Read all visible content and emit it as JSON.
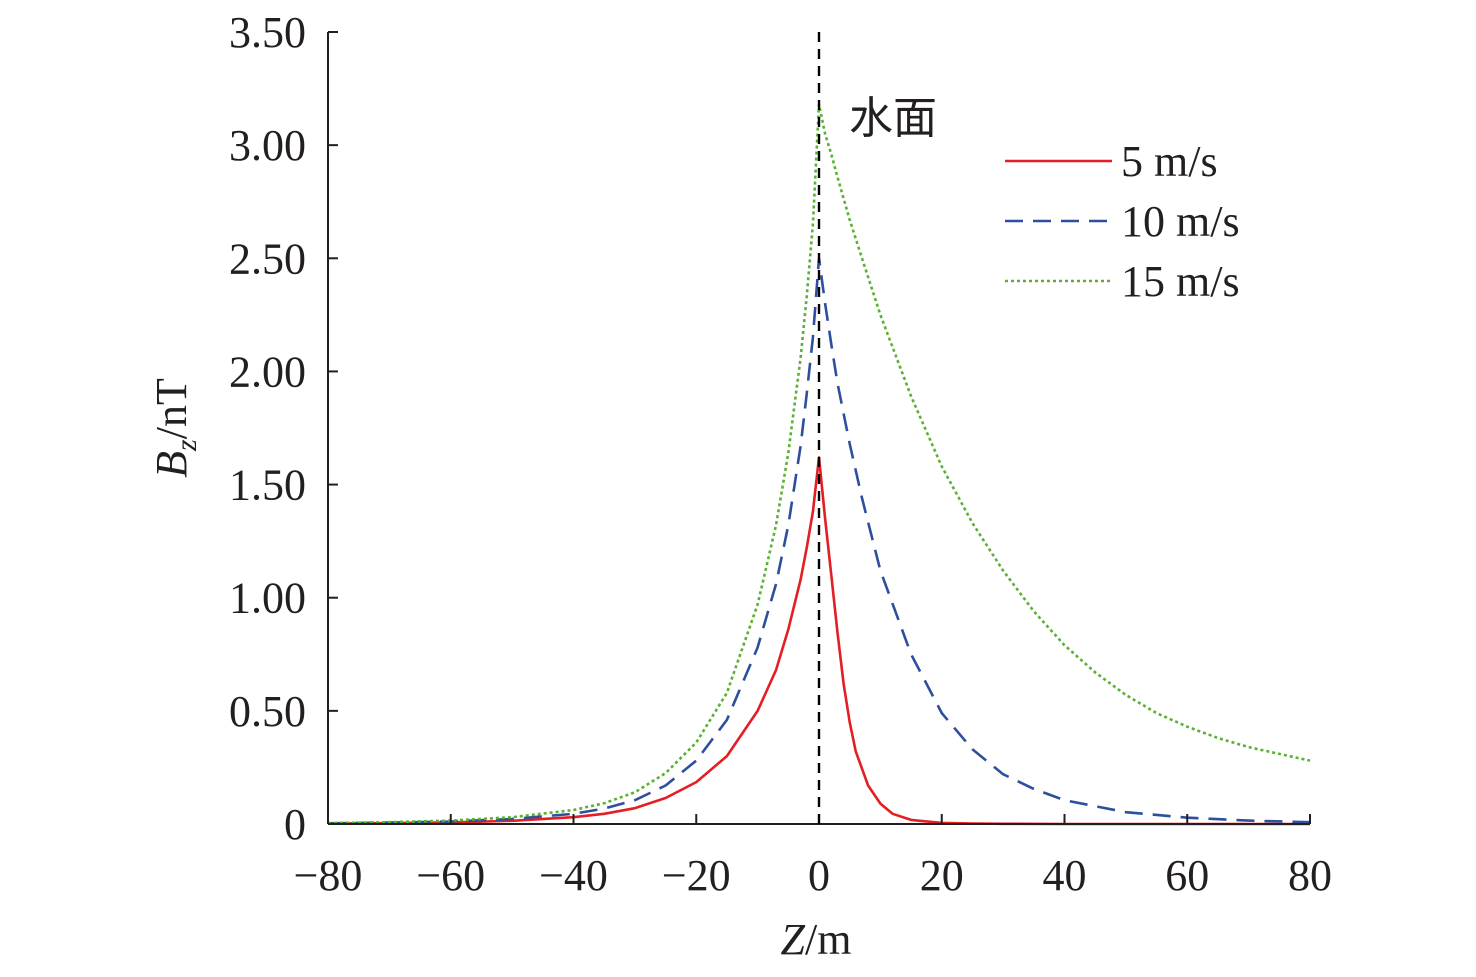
{
  "chart_data": {
    "type": "line",
    "xlabel": {
      "italic": "Z",
      "rest": "/m"
    },
    "ylabel": {
      "italic": "B",
      "sub": "z",
      "rest": "/nT"
    },
    "xlim": [
      -80,
      80
    ],
    "ylim": [
      0,
      3.5
    ],
    "x_ticks": [
      -80,
      -60,
      -40,
      -20,
      0,
      20,
      40,
      60,
      80
    ],
    "x_tick_labels": [
      "−80",
      "−60",
      "−40",
      "−20",
      "0",
      "20",
      "40",
      "60",
      "80"
    ],
    "y_ticks": [
      0,
      0.5,
      1.0,
      1.5,
      2.0,
      2.5,
      3.0,
      3.5
    ],
    "y_tick_labels": [
      "0",
      "0.50",
      "1.00",
      "1.50",
      "2.00",
      "2.50",
      "3.00",
      "3.50"
    ],
    "grid": false,
    "legend_position": "top-right",
    "reference_line": {
      "x": 0,
      "style": "dashed",
      "color": "#000000",
      "label": "水面"
    },
    "series": [
      {
        "name": "5 m/s",
        "color": "#e31e24",
        "style": "solid",
        "points": [
          [
            -80,
            0.002
          ],
          [
            -70,
            0.004
          ],
          [
            -60,
            0.007
          ],
          [
            -50,
            0.014
          ],
          [
            -40,
            0.03
          ],
          [
            -35,
            0.045
          ],
          [
            -30,
            0.07
          ],
          [
            -25,
            0.115
          ],
          [
            -20,
            0.185
          ],
          [
            -15,
            0.3
          ],
          [
            -10,
            0.5
          ],
          [
            -7,
            0.68
          ],
          [
            -5,
            0.86
          ],
          [
            -3,
            1.08
          ],
          [
            -2,
            1.22
          ],
          [
            -1,
            1.38
          ],
          [
            0,
            1.62
          ],
          [
            1,
            1.35
          ],
          [
            2,
            1.1
          ],
          [
            3,
            0.85
          ],
          [
            4,
            0.62
          ],
          [
            5,
            0.45
          ],
          [
            6,
            0.32
          ],
          [
            8,
            0.17
          ],
          [
            10,
            0.09
          ],
          [
            12,
            0.045
          ],
          [
            15,
            0.018
          ],
          [
            20,
            0.005
          ],
          [
            25,
            0.002
          ],
          [
            30,
            0.001
          ],
          [
            40,
            0.0
          ],
          [
            60,
            0.0
          ],
          [
            80,
            0.0
          ]
        ]
      },
      {
        "name": "10 m/s",
        "color": "#2e4e9e",
        "style": "dashed",
        "points": [
          [
            -80,
            0.003
          ],
          [
            -70,
            0.006
          ],
          [
            -60,
            0.011
          ],
          [
            -50,
            0.022
          ],
          [
            -40,
            0.045
          ],
          [
            -35,
            0.068
          ],
          [
            -30,
            0.105
          ],
          [
            -25,
            0.17
          ],
          [
            -20,
            0.28
          ],
          [
            -15,
            0.46
          ],
          [
            -10,
            0.78
          ],
          [
            -7,
            1.06
          ],
          [
            -5,
            1.32
          ],
          [
            -3,
            1.67
          ],
          [
            -2,
            1.9
          ],
          [
            -1,
            2.15
          ],
          [
            0,
            2.5
          ],
          [
            1,
            2.3
          ],
          [
            2,
            2.12
          ],
          [
            3,
            1.95
          ],
          [
            5,
            1.68
          ],
          [
            7,
            1.44
          ],
          [
            10,
            1.12
          ],
          [
            15,
            0.75
          ],
          [
            20,
            0.49
          ],
          [
            25,
            0.33
          ],
          [
            30,
            0.22
          ],
          [
            35,
            0.155
          ],
          [
            40,
            0.105
          ],
          [
            50,
            0.052
          ],
          [
            60,
            0.028
          ],
          [
            70,
            0.015
          ],
          [
            80,
            0.008
          ]
        ]
      },
      {
        "name": "15 m/s",
        "color": "#5ab034",
        "style": "dotted",
        "points": [
          [
            -80,
            0.004
          ],
          [
            -70,
            0.008
          ],
          [
            -60,
            0.015
          ],
          [
            -50,
            0.03
          ],
          [
            -40,
            0.062
          ],
          [
            -35,
            0.092
          ],
          [
            -30,
            0.14
          ],
          [
            -25,
            0.225
          ],
          [
            -20,
            0.36
          ],
          [
            -15,
            0.58
          ],
          [
            -10,
            0.97
          ],
          [
            -7,
            1.32
          ],
          [
            -5,
            1.64
          ],
          [
            -3,
            2.06
          ],
          [
            -2,
            2.33
          ],
          [
            -1,
            2.65
          ],
          [
            0,
            3.18
          ],
          [
            1,
            3.05
          ],
          [
            2,
            2.96
          ],
          [
            3,
            2.86
          ],
          [
            5,
            2.67
          ],
          [
            7,
            2.5
          ],
          [
            10,
            2.25
          ],
          [
            15,
            1.89
          ],
          [
            20,
            1.58
          ],
          [
            25,
            1.33
          ],
          [
            30,
            1.12
          ],
          [
            35,
            0.94
          ],
          [
            40,
            0.79
          ],
          [
            45,
            0.67
          ],
          [
            50,
            0.57
          ],
          [
            55,
            0.49
          ],
          [
            60,
            0.43
          ],
          [
            65,
            0.38
          ],
          [
            70,
            0.34
          ],
          [
            75,
            0.31
          ],
          [
            80,
            0.28
          ]
        ]
      }
    ]
  }
}
